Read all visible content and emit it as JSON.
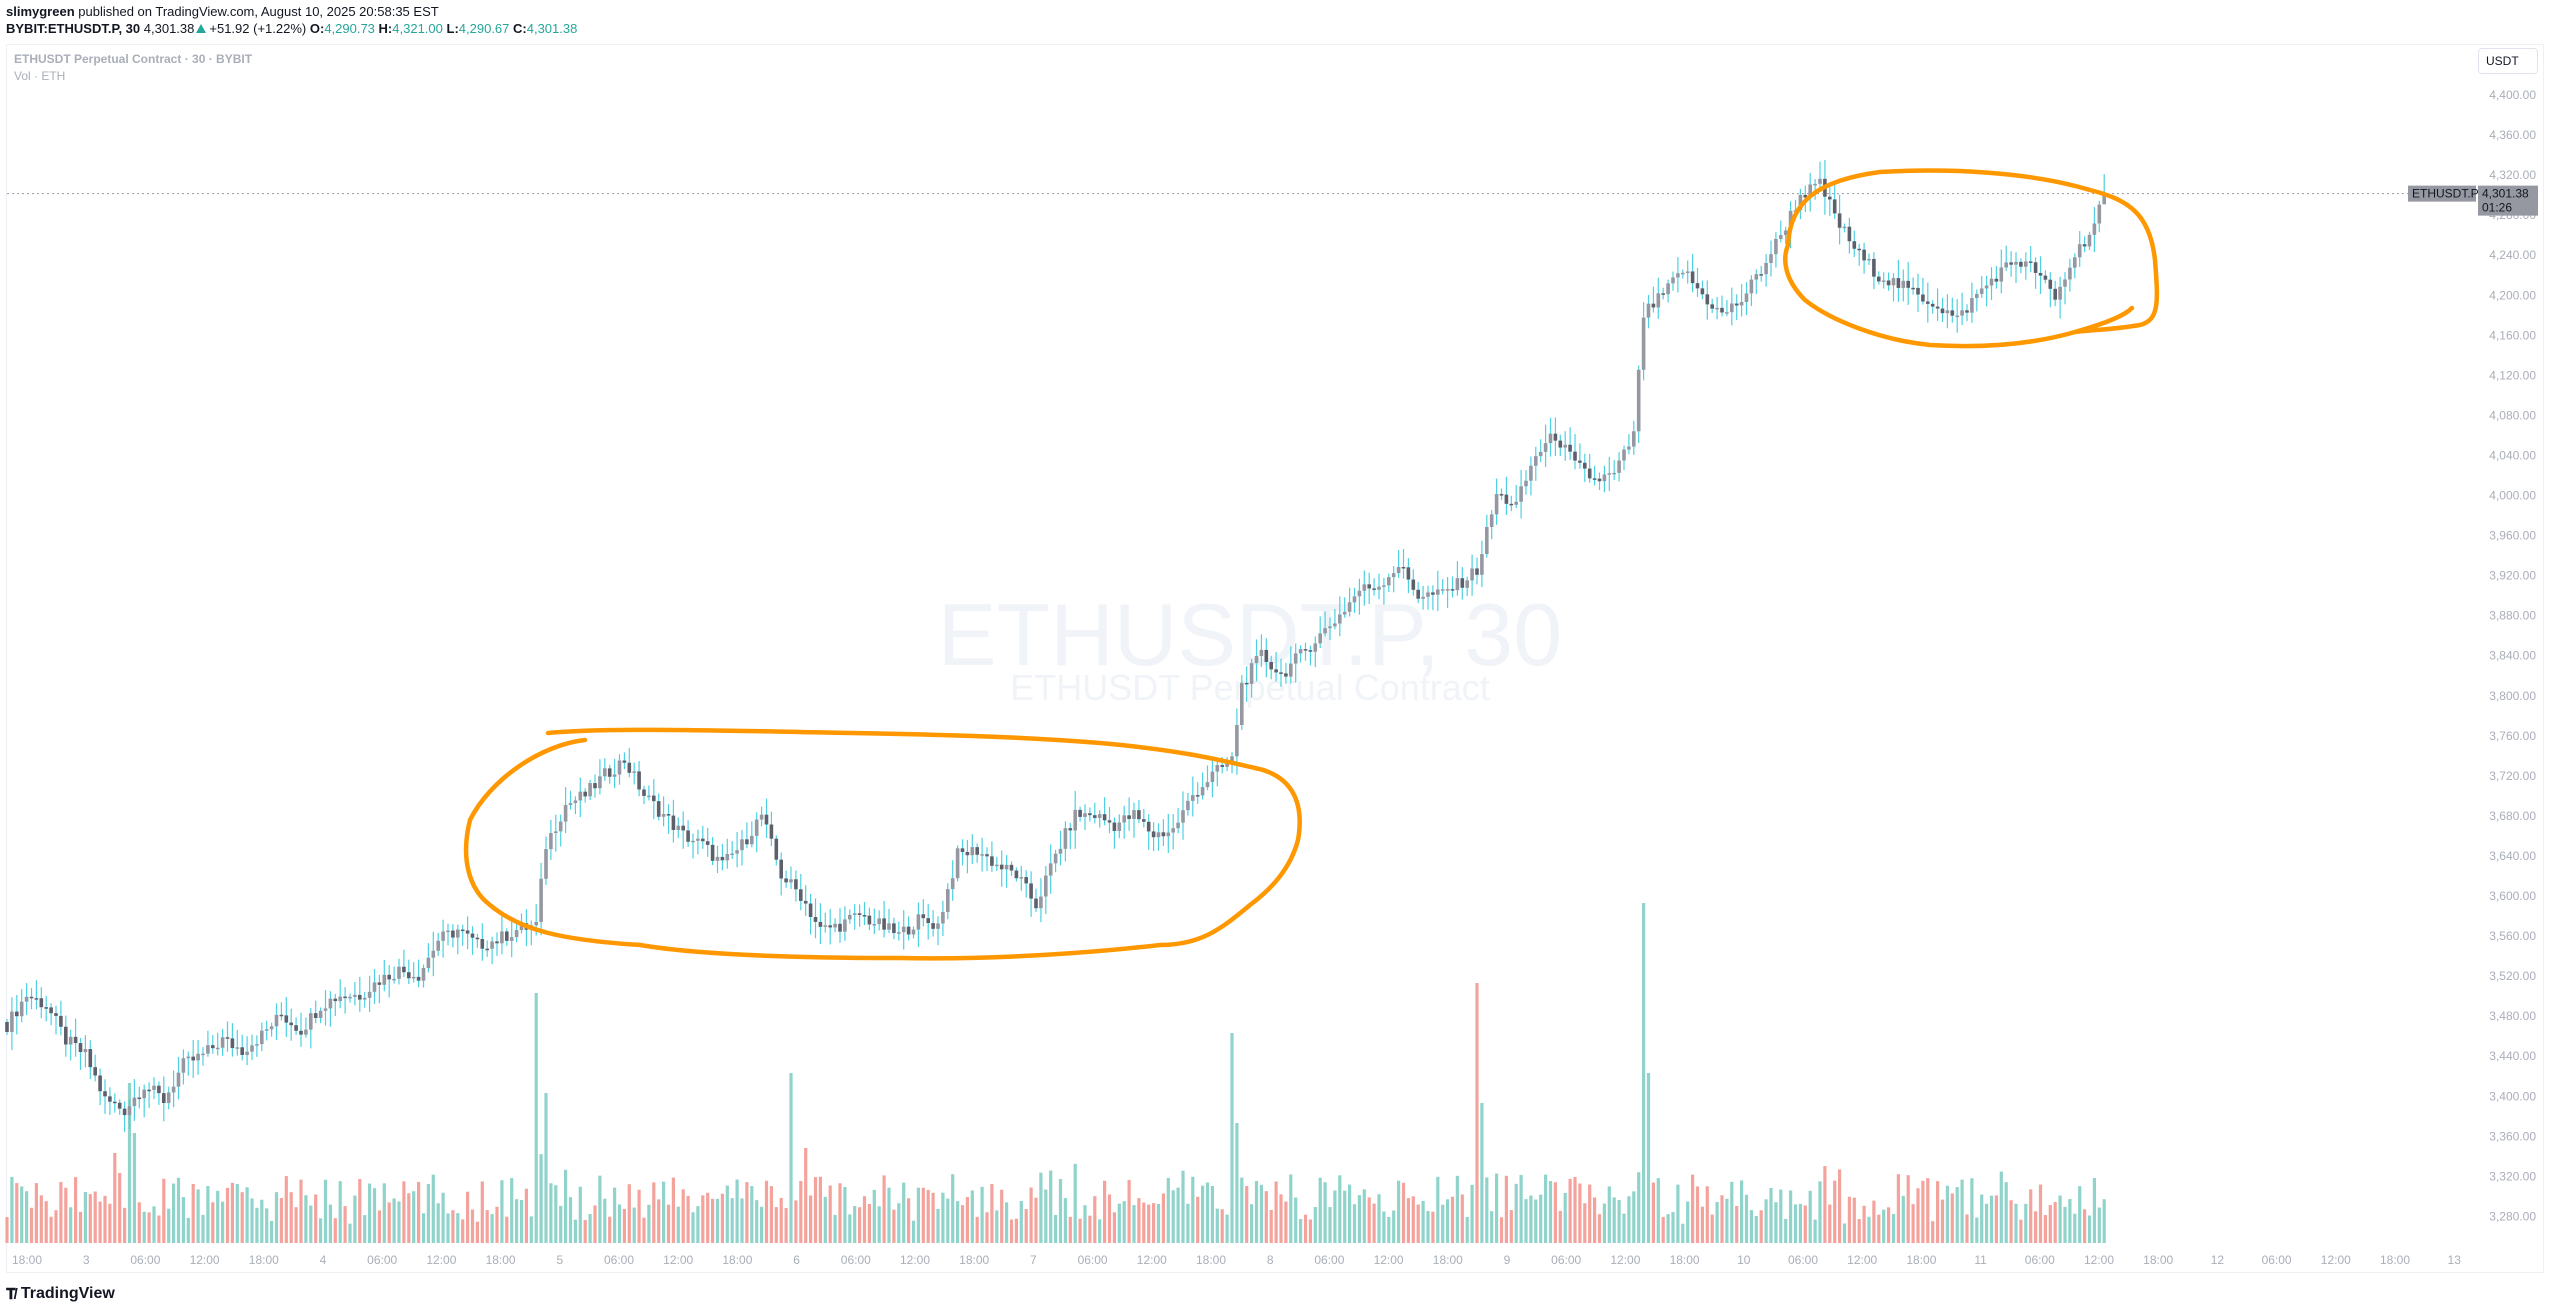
{
  "header": {
    "publisher": "slimygreen",
    "published_text": "published on TradingView.com, August 10, 2025 20:58:35 EST",
    "symbol": "BYBIT:ETHUSDT.P, 30",
    "last_price": "4,301.38",
    "change": "+51.92 (+1.22%)",
    "o_label": "O:",
    "o_value": "4,290.73",
    "h_label": "H:",
    "h_value": "4,321.00",
    "l_label": "L:",
    "l_value": "4,290.67",
    "c_label": "C:",
    "c_value": "4,301.38"
  },
  "legend": {
    "title": "ETHUSDT Perpetual Contract · 30 · BYBIT",
    "volume": "Vol · ETH"
  },
  "currency_button": "USDT",
  "price_tag": {
    "symbol": "ETHUSDT.P",
    "price": "4,301.38",
    "countdown": "01:26"
  },
  "watermark": {
    "line1": "ETHUSDT.P, 30",
    "line2": "ETHUSDT Perpetual Contract"
  },
  "footer": {
    "logo_text": "TradingView",
    "logo_mark": "TV"
  },
  "colors": {
    "up_body": "#9598a1",
    "down_body": "#5d606b",
    "wick": "#4dd0e1",
    "vol_up": "#8fd3ca",
    "vol_down": "#f4a39c",
    "annotation": "#ff9800",
    "accent_green": "#26a69a"
  },
  "chart_data": {
    "type": "candlestick",
    "title": "BYBIT:ETHUSDT.P, 30",
    "xlabel": "",
    "ylabel": "USDT",
    "ylim": [
      3250,
      4420
    ],
    "grid": false,
    "legend_position": "top-left",
    "y_ticks": [
      "4,400.00",
      "4,360.00",
      "4,320.00",
      "4,280.00",
      "4,240.00",
      "4,200.00",
      "4,160.00",
      "4,120.00",
      "4,080.00",
      "4,040.00",
      "4,000.00",
      "3,960.00",
      "3,920.00",
      "3,880.00",
      "3,840.00",
      "3,800.00",
      "3,760.00",
      "3,720.00",
      "3,680.00",
      "3,640.00",
      "3,600.00",
      "3,560.00",
      "3,520.00",
      "3,480.00",
      "3,440.00",
      "3,400.00",
      "3,360.00",
      "3,320.00",
      "3,280.00"
    ],
    "x_ticks": [
      "18:00",
      "3",
      "06:00",
      "12:00",
      "18:00",
      "4",
      "06:00",
      "12:00",
      "18:00",
      "5",
      "06:00",
      "12:00",
      "18:00",
      "6",
      "06:00",
      "12:00",
      "18:00",
      "7",
      "06:00",
      "12:00",
      "18:00",
      "8",
      "06:00",
      "12:00",
      "18:00",
      "9",
      "06:00",
      "12:00",
      "18:00",
      "10",
      "06:00",
      "12:00",
      "18:00",
      "11",
      "06:00",
      "12:00",
      "18:00",
      "12",
      "06:00",
      "12:00",
      "18:00",
      "13"
    ],
    "interval": "30m",
    "last": {
      "open": 4290.73,
      "high": 4321.0,
      "low": 4290.67,
      "close": 4301.38,
      "change": 51.92,
      "change_pct": 1.22
    },
    "close_path": [
      [
        0,
        3470
      ],
      [
        4,
        3500
      ],
      [
        8,
        3490
      ],
      [
        12,
        3455
      ],
      [
        16,
        3440
      ],
      [
        20,
        3395
      ],
      [
        24,
        3385
      ],
      [
        28,
        3410
      ],
      [
        32,
        3395
      ],
      [
        36,
        3430
      ],
      [
        40,
        3440
      ],
      [
        44,
        3455
      ],
      [
        48,
        3445
      ],
      [
        52,
        3460
      ],
      [
        56,
        3480
      ],
      [
        60,
        3465
      ],
      [
        64,
        3490
      ],
      [
        68,
        3500
      ],
      [
        72,
        3500
      ],
      [
        76,
        3515
      ],
      [
        80,
        3525
      ],
      [
        84,
        3520
      ],
      [
        88,
        3555
      ],
      [
        92,
        3565
      ],
      [
        96,
        3550
      ],
      [
        100,
        3555
      ],
      [
        104,
        3565
      ],
      [
        108,
        3570
      ],
      [
        110,
        3650
      ],
      [
        114,
        3690
      ],
      [
        118,
        3700
      ],
      [
        122,
        3720
      ],
      [
        126,
        3735
      ],
      [
        130,
        3700
      ],
      [
        134,
        3680
      ],
      [
        138,
        3660
      ],
      [
        142,
        3650
      ],
      [
        146,
        3630
      ],
      [
        150,
        3650
      ],
      [
        154,
        3680
      ],
      [
        158,
        3620
      ],
      [
        162,
        3600
      ],
      [
        166,
        3565
      ],
      [
        170,
        3570
      ],
      [
        174,
        3580
      ],
      [
        178,
        3570
      ],
      [
        182,
        3560
      ],
      [
        186,
        3575
      ],
      [
        190,
        3570
      ],
      [
        194,
        3640
      ],
      [
        198,
        3645
      ],
      [
        202,
        3630
      ],
      [
        206,
        3620
      ],
      [
        210,
        3590
      ],
      [
        214,
        3640
      ],
      [
        218,
        3680
      ],
      [
        222,
        3680
      ],
      [
        226,
        3670
      ],
      [
        230,
        3680
      ],
      [
        234,
        3660
      ],
      [
        238,
        3665
      ],
      [
        242,
        3700
      ],
      [
        246,
        3720
      ],
      [
        250,
        3735
      ],
      [
        252,
        3810
      ],
      [
        256,
        3840
      ],
      [
        260,
        3820
      ],
      [
        264,
        3840
      ],
      [
        268,
        3860
      ],
      [
        272,
        3880
      ],
      [
        276,
        3905
      ],
      [
        280,
        3910
      ],
      [
        284,
        3930
      ],
      [
        288,
        3900
      ],
      [
        292,
        3900
      ],
      [
        296,
        3910
      ],
      [
        300,
        3925
      ],
      [
        304,
        4000
      ],
      [
        308,
        3990
      ],
      [
        312,
        4040
      ],
      [
        316,
        4060
      ],
      [
        320,
        4030
      ],
      [
        324,
        4015
      ],
      [
        328,
        4020
      ],
      [
        332,
        4060
      ],
      [
        334,
        4180
      ],
      [
        338,
        4200
      ],
      [
        342,
        4225
      ],
      [
        346,
        4200
      ],
      [
        350,
        4180
      ],
      [
        354,
        4195
      ],
      [
        358,
        4225
      ],
      [
        362,
        4260
      ],
      [
        366,
        4300
      ],
      [
        370,
        4310
      ],
      [
        374,
        4270
      ],
      [
        378,
        4240
      ],
      [
        382,
        4220
      ],
      [
        386,
        4210
      ],
      [
        390,
        4200
      ],
      [
        394,
        4190
      ],
      [
        398,
        4175
      ],
      [
        402,
        4200
      ],
      [
        406,
        4220
      ],
      [
        410,
        4235
      ],
      [
        414,
        4225
      ],
      [
        418,
        4195
      ],
      [
        422,
        4240
      ],
      [
        426,
        4270
      ],
      [
        428,
        4301
      ]
    ],
    "volume_note": "Volume histogram (ETH) beneath price; spikes near candle index 22-26 (Aug 3), 108 (Aug 5), 160 (Aug 6), 250 (Aug 8), 300 (Aug 9), 334 (Aug 9 PM)"
  }
}
